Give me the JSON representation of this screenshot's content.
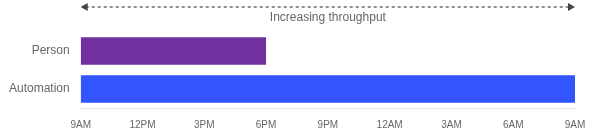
{
  "chart_data": {
    "type": "bar",
    "orientation": "horizontal",
    "categories": [
      "Person",
      "Automation"
    ],
    "values": [
      9,
      24
    ],
    "colors": [
      "#7030a0",
      "#3355ff"
    ],
    "xlim": [
      0,
      24
    ],
    "xticks": [
      {
        "value": 0,
        "label": "9AM"
      },
      {
        "value": 3,
        "label": "12PM"
      },
      {
        "value": 6,
        "label": "3PM"
      },
      {
        "value": 9,
        "label": "6PM"
      },
      {
        "value": 12,
        "label": "9PM"
      },
      {
        "value": 15,
        "label": "12AM"
      },
      {
        "value": 18,
        "label": "3AM"
      },
      {
        "value": 21,
        "label": "6AM"
      },
      {
        "value": 24,
        "label": "9AM"
      }
    ],
    "annotation": "Increasing throughput",
    "grid": false
  }
}
